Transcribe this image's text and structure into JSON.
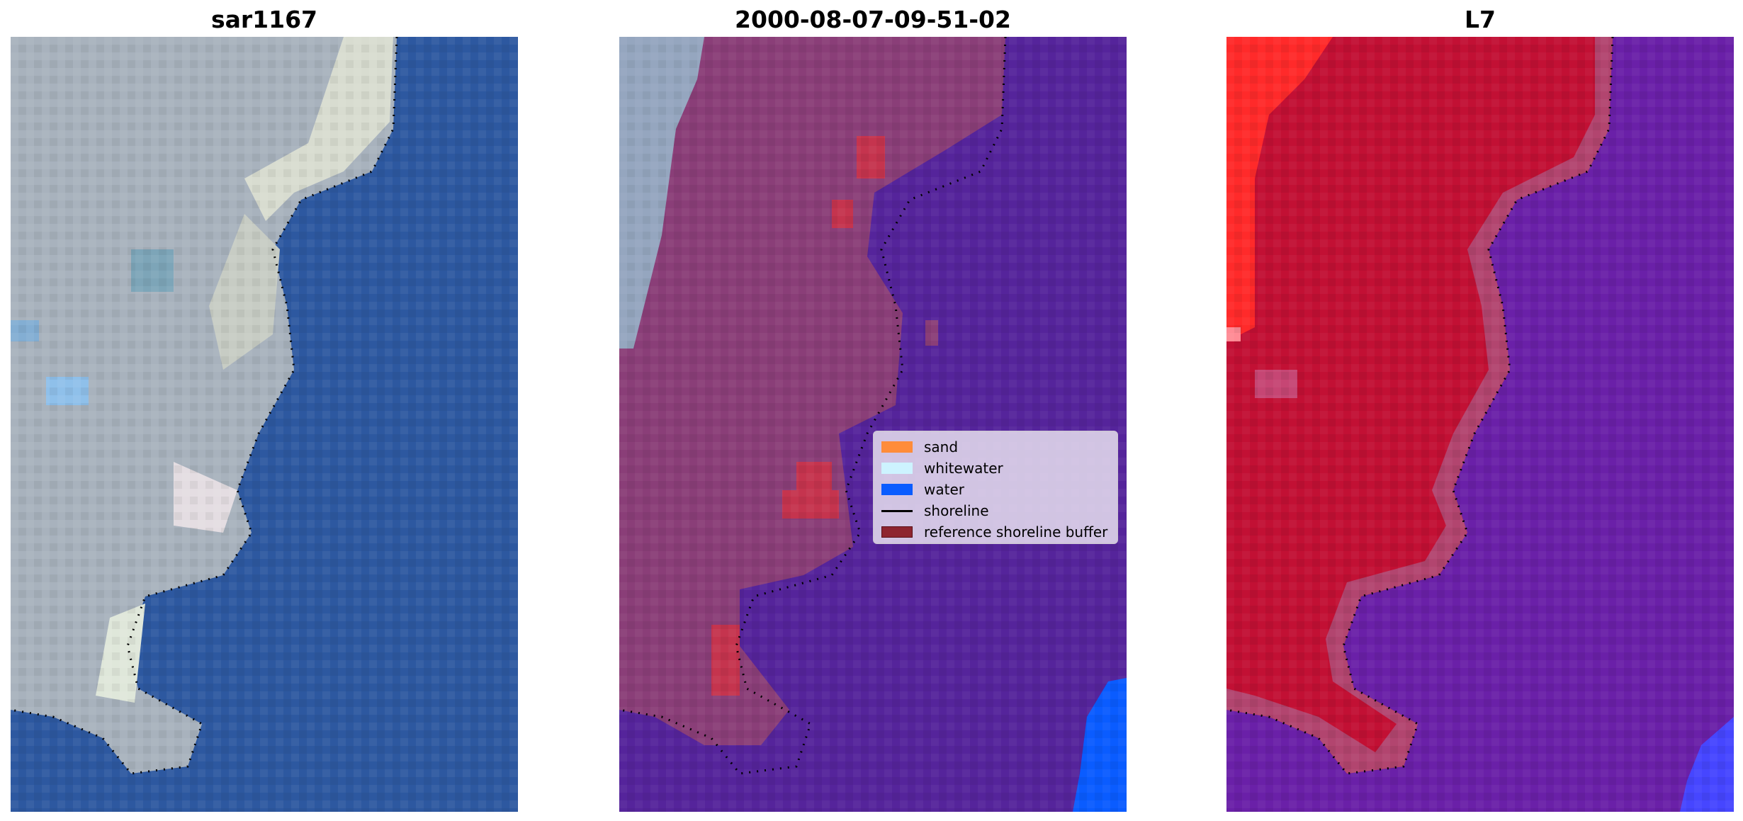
{
  "panels": [
    {
      "title": "sar1167"
    },
    {
      "title": "2000-08-07-09-51-02"
    },
    {
      "title": "L7"
    }
  ],
  "legend": {
    "items": [
      {
        "label": "sand",
        "color": "#ff8c3a",
        "kind": "patch"
      },
      {
        "label": "whitewater",
        "color": "#cdf3ff",
        "kind": "patch"
      },
      {
        "label": "water",
        "color": "#0a5cff",
        "kind": "patch"
      },
      {
        "label": "shoreline",
        "color": "#000000",
        "kind": "line"
      },
      {
        "label": "reference shoreline buffer",
        "color": "#8e2530",
        "kind": "patch"
      }
    ]
  },
  "colors": {
    "water_rgb": "#2d58a0",
    "land_rgb": "#a8b2bd",
    "overlay_water": "#55249b",
    "overlay_land": "#8a3e78",
    "false_land": "#c21034",
    "false_water": "#6a20a8",
    "false_bright": "#ff2a2a",
    "deep_blue": "#0a5cff"
  }
}
